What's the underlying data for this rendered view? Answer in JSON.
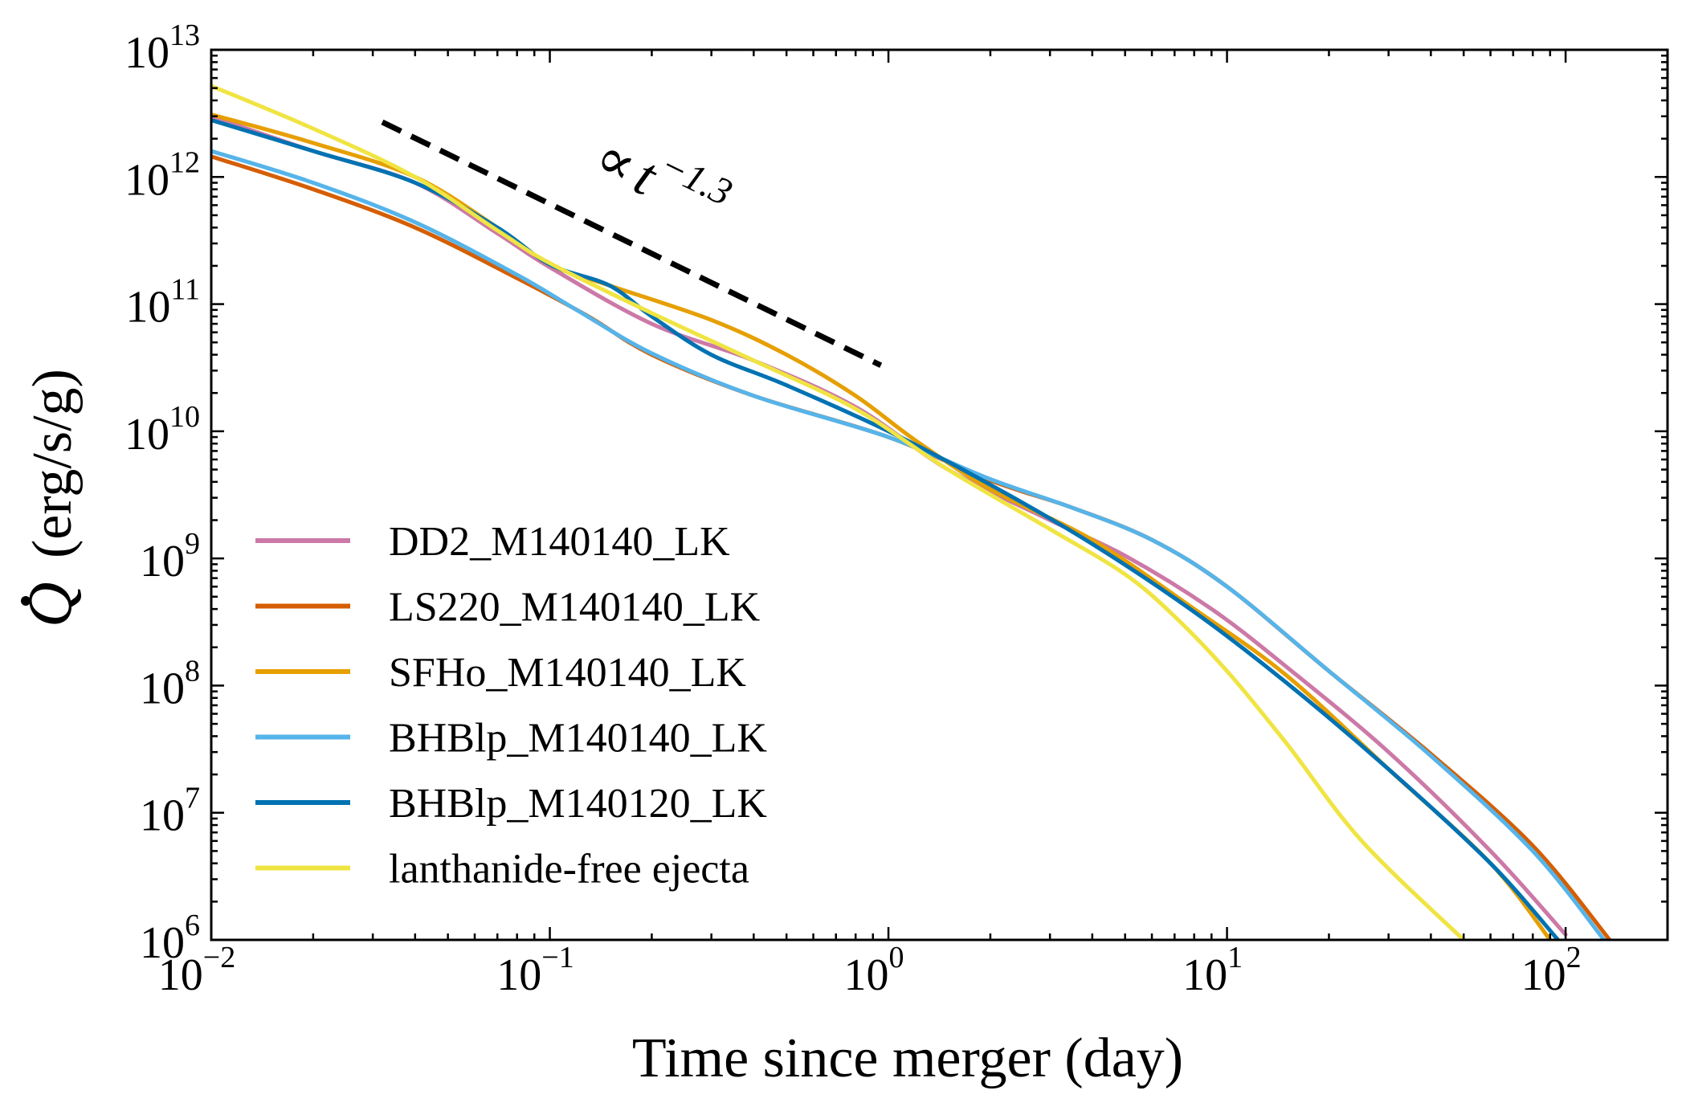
{
  "chart_data": {
    "type": "line",
    "title": "",
    "xlabel": "Time since merger (day)",
    "ylabel_symbol": "Q",
    "ylabel_units": "(erg/s/g)",
    "xscale": "log",
    "yscale": "log",
    "xlim": [
      0.01,
      200
    ],
    "ylim": [
      1000000.0,
      10000000000000.0
    ],
    "x_ticks": [
      {
        "value": 0.01,
        "base": "10",
        "exp": "−2"
      },
      {
        "value": 0.1,
        "base": "10",
        "exp": "−1"
      },
      {
        "value": 1,
        "base": "10",
        "exp": "0"
      },
      {
        "value": 10,
        "base": "10",
        "exp": "1"
      },
      {
        "value": 100,
        "base": "10",
        "exp": "2"
      }
    ],
    "y_ticks": [
      {
        "value": 1000000.0,
        "base": "10",
        "exp": "6"
      },
      {
        "value": 10000000.0,
        "base": "10",
        "exp": "7"
      },
      {
        "value": 100000000.0,
        "base": "10",
        "exp": "8"
      },
      {
        "value": 1000000000.0,
        "base": "10",
        "exp": "9"
      },
      {
        "value": 10000000000.0,
        "base": "10",
        "exp": "10"
      },
      {
        "value": 100000000000.0,
        "base": "10",
        "exp": "11"
      },
      {
        "value": 1000000000000.0,
        "base": "10",
        "exp": "12"
      },
      {
        "value": 10000000000000.0,
        "base": "10",
        "exp": "13"
      }
    ],
    "legend_position": "lower-left",
    "annotation": {
      "prefix": "∝",
      "var": "t",
      "exp": "−1.3",
      "line": {
        "x": [
          0.032,
          0.95
        ],
        "y": [
          2700000000000.0,
          33000000000.0
        ]
      }
    },
    "series": [
      {
        "name": "DD2_M140140_LK",
        "color": "#cc79a7",
        "points": [
          [
            0.01,
            3000000000000.0
          ],
          [
            0.02,
            1600000000000.0
          ],
          [
            0.04,
            900000000000.0
          ],
          [
            0.07,
            360000000000.0
          ],
          [
            0.1,
            195000000000.0
          ],
          [
            0.2,
            70000000000.0
          ],
          [
            0.4,
            36000000000.0
          ],
          [
            0.8,
            15500000000.0
          ],
          [
            1.5,
            5000000000.0
          ],
          [
            3,
            2000000000.0
          ],
          [
            5,
            1050000000.0
          ],
          [
            9,
            400000000.0
          ],
          [
            15,
            140000000.0
          ],
          [
            30,
            30000000.0
          ],
          [
            60,
            5000000.0
          ],
          [
            100,
            1100000.0
          ]
        ]
      },
      {
        "name": "LS220_M140140_LK",
        "color": "#d55e00",
        "points": [
          [
            0.01,
            1450000000000.0
          ],
          [
            0.02,
            800000000000.0
          ],
          [
            0.04,
            400000000000.0
          ],
          [
            0.08,
            160000000000.0
          ],
          [
            0.13,
            80000000000.0
          ],
          [
            0.2,
            40000000000.0
          ],
          [
            0.4,
            19000000000.0
          ],
          [
            1.0,
            9000000000.0
          ],
          [
            2,
            4100000000.0
          ],
          [
            3.5,
            2500000000.0
          ],
          [
            6,
            1400000000.0
          ],
          [
            10,
            600000000.0
          ],
          [
            20,
            130000000.0
          ],
          [
            40,
            29000000.0
          ],
          [
            80,
            5500000.0
          ],
          [
            135,
            1000000.0
          ]
        ]
      },
      {
        "name": "SFHo_M140140_LK",
        "color": "#e69f00",
        "points": [
          [
            0.01,
            3100000000000.0
          ],
          [
            0.02,
            1850000000000.0
          ],
          [
            0.04,
            1000000000000.0
          ],
          [
            0.07,
            400000000000.0
          ],
          [
            0.1,
            205000000000.0
          ],
          [
            0.15,
            140000000000.0
          ],
          [
            0.3,
            75000000000.0
          ],
          [
            0.5,
            40000000000.0
          ],
          [
            0.8,
            19000000000.0
          ],
          [
            1.2,
            8500000000.0
          ],
          [
            2,
            3500000000.0
          ],
          [
            4,
            1400000000.0
          ],
          [
            8,
            400000000.0
          ],
          [
            15,
            120000000.0
          ],
          [
            30,
            22000000.0
          ],
          [
            60,
            4000000.0
          ],
          [
            90,
            1000000.0
          ]
        ]
      },
      {
        "name": "BHBlp_M140140_LK",
        "color": "#56b4e9",
        "points": [
          [
            0.01,
            1600000000000.0
          ],
          [
            0.02,
            900000000000.0
          ],
          [
            0.04,
            440000000000.0
          ],
          [
            0.08,
            170000000000.0
          ],
          [
            0.12,
            90000000000.0
          ],
          [
            0.2,
            41000000000.0
          ],
          [
            0.4,
            19000000000.0
          ],
          [
            1.0,
            9000000000.0
          ],
          [
            2,
            4200000000.0
          ],
          [
            3.5,
            2500000000.0
          ],
          [
            6,
            1400000000.0
          ],
          [
            10,
            600000000.0
          ],
          [
            20,
            130000000.0
          ],
          [
            40,
            28000000.0
          ],
          [
            80,
            5000000.0
          ],
          [
            130,
            1000000.0
          ]
        ]
      },
      {
        "name": "BHBlp_M140120_LK",
        "color": "#0072b2",
        "points": [
          [
            0.01,
            2800000000000.0
          ],
          [
            0.02,
            1600000000000.0
          ],
          [
            0.04,
            900000000000.0
          ],
          [
            0.07,
            400000000000.0
          ],
          [
            0.1,
            205000000000.0
          ],
          [
            0.15,
            140000000000.0
          ],
          [
            0.2,
            80000000000.0
          ],
          [
            0.3,
            40000000000.0
          ],
          [
            0.5,
            23000000000.0
          ],
          [
            1.0,
            10000000000.0
          ],
          [
            2,
            3800000000.0
          ],
          [
            4,
            1300000000.0
          ],
          [
            8,
            380000000.0
          ],
          [
            15,
            105000000.0
          ],
          [
            30,
            22000000.0
          ],
          [
            60,
            4000000.0
          ],
          [
            95,
            1000000.0
          ]
        ]
      },
      {
        "name": "lanthanide-free ejecta",
        "color": "#f0e442",
        "points": [
          [
            0.01,
            5200000000000.0
          ],
          [
            0.02,
            2400000000000.0
          ],
          [
            0.04,
            1000000000000.0
          ],
          [
            0.07,
            380000000000.0
          ],
          [
            0.1,
            210000000000.0
          ],
          [
            0.2,
            85000000000.0
          ],
          [
            0.4,
            36000000000.0
          ],
          [
            0.8,
            15000000000.0
          ],
          [
            1.5,
            5000000000.0
          ],
          [
            3,
            1700000000.0
          ],
          [
            5,
            750000000.0
          ],
          [
            7,
            350000000.0
          ],
          [
            10,
            130000000.0
          ],
          [
            15,
            35000000.0
          ],
          [
            25,
            6000000.0
          ],
          [
            50,
            1000000.0
          ]
        ]
      }
    ]
  }
}
